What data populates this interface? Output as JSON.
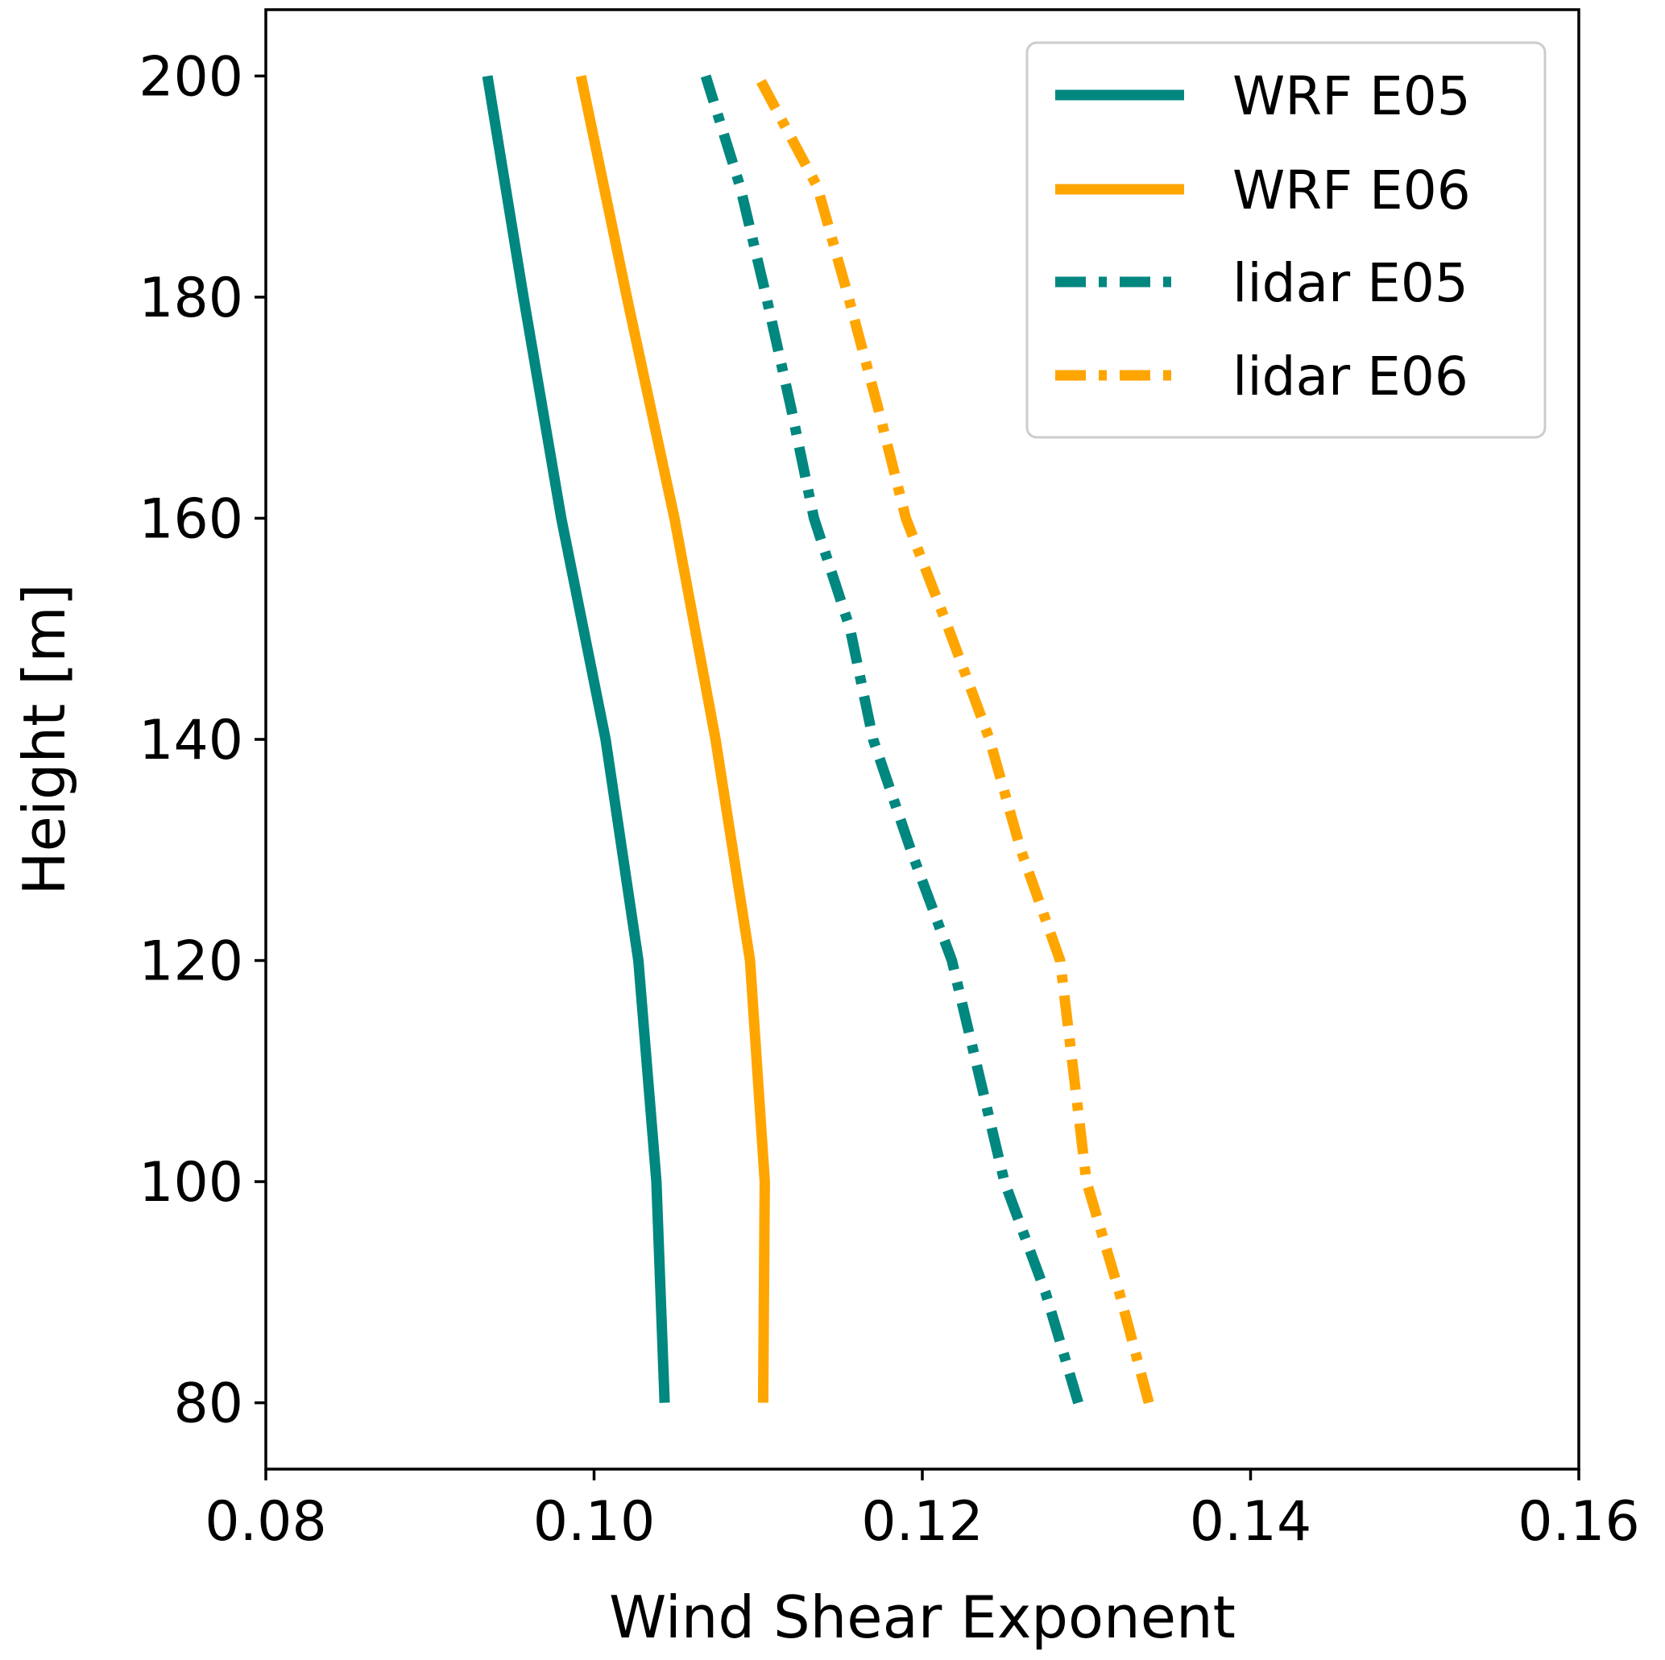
{
  "chart_data": {
    "type": "line",
    "title": "",
    "xlabel": "Wind Shear Exponent",
    "ylabel": "Height [m]",
    "xlim": [
      0.08,
      0.16
    ],
    "ylim": [
      74,
      206
    ],
    "xticks": [
      0.08,
      0.1,
      0.12,
      0.14,
      0.16
    ],
    "xtick_labels": [
      "0.08",
      "0.10",
      "0.12",
      "0.14",
      "0.16"
    ],
    "yticks": [
      80,
      100,
      120,
      140,
      160,
      180,
      200
    ],
    "ytick_labels": [
      "80",
      "100",
      "120",
      "140",
      "160",
      "180",
      "200"
    ],
    "grid": false,
    "legend_position": "top-right",
    "series": [
      {
        "name": "WRF E05",
        "color": "#00877F",
        "style": "solid",
        "points": [
          [
            0.1043,
            80
          ],
          [
            0.1038,
            100
          ],
          [
            0.1027,
            120
          ],
          [
            0.1007,
            140
          ],
          [
            0.098,
            160
          ],
          [
            0.0957,
            180
          ],
          [
            0.0935,
            200
          ]
        ]
      },
      {
        "name": "WRF E06",
        "color": "#FFA500",
        "style": "solid",
        "points": [
          [
            0.1103,
            80
          ],
          [
            0.1104,
            100
          ],
          [
            0.1095,
            120
          ],
          [
            0.1074,
            140
          ],
          [
            0.1049,
            160
          ],
          [
            0.102,
            180
          ],
          [
            0.0992,
            200
          ]
        ]
      },
      {
        "name": "lidar E05",
        "color": "#00877F",
        "style": "dashdot",
        "points": [
          [
            0.1295,
            80
          ],
          [
            0.1275,
            90
          ],
          [
            0.125,
            100
          ],
          [
            0.1234,
            110
          ],
          [
            0.1218,
            120
          ],
          [
            0.1193,
            130
          ],
          [
            0.117,
            140
          ],
          [
            0.1156,
            150
          ],
          [
            0.1134,
            160
          ],
          [
            0.112,
            170
          ],
          [
            0.1105,
            180
          ],
          [
            0.1089,
            190
          ],
          [
            0.1068,
            200
          ]
        ]
      },
      {
        "name": "lidar E06",
        "color": "#FFA500",
        "style": "dashdot",
        "points": [
          [
            0.1338,
            80
          ],
          [
            0.132,
            90
          ],
          [
            0.13,
            100
          ],
          [
            0.1292,
            110
          ],
          [
            0.1284,
            120
          ],
          [
            0.126,
            130
          ],
          [
            0.1241,
            140
          ],
          [
            0.1216,
            150
          ],
          [
            0.119,
            160
          ],
          [
            0.1173,
            170
          ],
          [
            0.1155,
            180
          ],
          [
            0.1136,
            190
          ],
          [
            0.11,
            200
          ]
        ]
      }
    ]
  }
}
